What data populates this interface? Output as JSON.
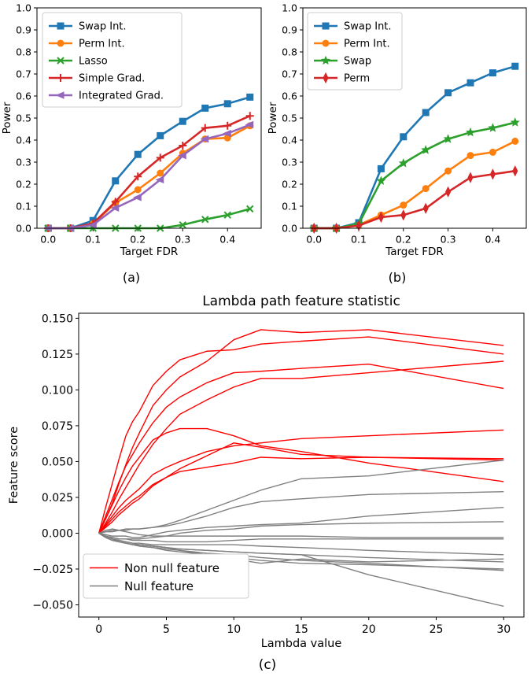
{
  "chart_data": [
    {
      "panel_label": "(a)",
      "type": "line",
      "xlabel": "Target FDR",
      "ylabel": "Power",
      "xlim": [
        -0.025,
        0.475
      ],
      "ylim": [
        0.0,
        1.0
      ],
      "xticks": [
        0.0,
        0.1,
        0.2,
        0.3,
        0.4
      ],
      "xtick_labels": [
        "0.0",
        "0.1",
        "0.2",
        "0.3",
        "0.4"
      ],
      "yticks": [
        0.0,
        0.1,
        0.2,
        0.3,
        0.4,
        0.5,
        0.6,
        0.7,
        0.8,
        0.9,
        1.0
      ],
      "ytick_labels": [
        "0.0",
        "0.1",
        "0.2",
        "0.3",
        "0.4",
        "0.5",
        "0.6",
        "0.7",
        "0.8",
        "0.9",
        "1.0"
      ],
      "legend_position": "top-left",
      "grid": false,
      "x": [
        0.0,
        0.05,
        0.1,
        0.15,
        0.2,
        0.25,
        0.3,
        0.35,
        0.4,
        0.45
      ],
      "series": [
        {
          "name": "Swap Int.",
          "color": "#1f77b4",
          "marker": "square",
          "values": [
            0.0,
            0.0,
            0.035,
            0.215,
            0.335,
            0.42,
            0.485,
            0.545,
            0.565,
            0.595
          ]
        },
        {
          "name": "Perm Int.",
          "color": "#ff7f0e",
          "marker": "circle",
          "values": [
            0.0,
            0.0,
            0.02,
            0.115,
            0.175,
            0.25,
            0.34,
            0.405,
            0.41,
            0.465
          ]
        },
        {
          "name": "Lasso",
          "color": "#2ca02c",
          "marker": "x",
          "values": [
            0.0,
            0.0,
            0.0,
            0.0,
            0.0,
            0.0,
            0.015,
            0.04,
            0.06,
            0.088
          ]
        },
        {
          "name": "Simple Grad.",
          "color": "#d62728",
          "marker": "plus",
          "values": [
            0.0,
            0.0,
            0.022,
            0.12,
            0.235,
            0.32,
            0.375,
            0.455,
            0.465,
            0.51
          ]
        },
        {
          "name": "Integrated Grad.",
          "color": "#9467bd",
          "marker": "triangle-left",
          "values": [
            0.0,
            0.0,
            0.015,
            0.092,
            0.14,
            0.22,
            0.33,
            0.405,
            0.43,
            0.47
          ]
        }
      ]
    },
    {
      "panel_label": "(b)",
      "type": "line",
      "xlabel": "Target FDR",
      "ylabel": "Power",
      "xlim": [
        -0.025,
        0.475
      ],
      "ylim": [
        0.0,
        1.0
      ],
      "xticks": [
        0.0,
        0.1,
        0.2,
        0.3,
        0.4
      ],
      "xtick_labels": [
        "0.0",
        "0.1",
        "0.2",
        "0.3",
        "0.4"
      ],
      "yticks": [
        0.0,
        0.1,
        0.2,
        0.3,
        0.4,
        0.5,
        0.6,
        0.7,
        0.8,
        0.9,
        1.0
      ],
      "ytick_labels": [
        "0.0",
        "0.1",
        "0.2",
        "0.3",
        "0.4",
        "0.5",
        "0.6",
        "0.7",
        "0.8",
        "0.9",
        "1.0"
      ],
      "legend_position": "top-left",
      "grid": false,
      "x": [
        0.0,
        0.05,
        0.1,
        0.15,
        0.2,
        0.25,
        0.3,
        0.35,
        0.4,
        0.45
      ],
      "series": [
        {
          "name": "Swap Int.",
          "color": "#1f77b4",
          "marker": "square",
          "values": [
            0.0,
            0.0,
            0.025,
            0.27,
            0.415,
            0.525,
            0.615,
            0.66,
            0.705,
            0.735
          ]
        },
        {
          "name": "Perm Int.",
          "color": "#ff7f0e",
          "marker": "circle",
          "values": [
            0.0,
            0.0,
            0.015,
            0.06,
            0.105,
            0.18,
            0.26,
            0.33,
            0.345,
            0.395
          ]
        },
        {
          "name": "Swap",
          "color": "#2ca02c",
          "marker": "star",
          "values": [
            0.0,
            0.0,
            0.02,
            0.215,
            0.295,
            0.355,
            0.405,
            0.435,
            0.455,
            0.48
          ]
        },
        {
          "name": "Perm",
          "color": "#d62728",
          "marker": "diamond",
          "values": [
            0.0,
            0.0,
            0.012,
            0.05,
            0.06,
            0.09,
            0.165,
            0.23,
            0.245,
            0.26
          ]
        }
      ]
    },
    {
      "panel_label": "(c)",
      "type": "line",
      "title": "Lambda path feature statistic",
      "xlabel": "Lambda value",
      "ylabel": "Feature score",
      "xlim": [
        -1.5,
        31.5
      ],
      "ylim": [
        -0.0585,
        0.1535
      ],
      "xticks": [
        0,
        5,
        10,
        15,
        20,
        25,
        30
      ],
      "xtick_labels": [
        "0",
        "5",
        "10",
        "15",
        "20",
        "25",
        "30"
      ],
      "yticks": [
        -0.05,
        -0.025,
        0.0,
        0.025,
        0.05,
        0.075,
        0.1,
        0.125,
        0.15
      ],
      "ytick_labels": [
        "−0.050",
        "−0.025",
        "0.000",
        "0.025",
        "0.050",
        "0.075",
        "0.100",
        "0.125",
        "0.150"
      ],
      "legend_position": "bottom-left",
      "legend": [
        {
          "label": "Non null feature",
          "color": "#ff0000"
        },
        {
          "label": "Null feature",
          "color": "#808080"
        }
      ],
      "grid": false,
      "x": [
        0,
        0.5,
        1,
        1.5,
        2,
        2.5,
        3,
        4,
        5,
        6,
        8,
        10,
        12,
        15,
        20,
        30
      ],
      "series": [
        {
          "group": "Non null feature",
          "color": "#ff0000",
          "values": [
            0,
            0.018,
            0.035,
            0.052,
            0.068,
            0.078,
            0.085,
            0.103,
            0.113,
            0.121,
            0.127,
            0.128,
            0.132,
            0.134,
            0.137,
            0.125
          ]
        },
        {
          "group": "Non null feature",
          "color": "#ff0000",
          "values": [
            0,
            0.012,
            0.024,
            0.036,
            0.047,
            0.055,
            0.063,
            0.077,
            0.088,
            0.095,
            0.105,
            0.112,
            0.113,
            0.115,
            0.118,
            0.101
          ]
        },
        {
          "group": "Non null feature",
          "color": "#ff0000",
          "values": [
            0,
            0.01,
            0.021,
            0.035,
            0.048,
            0.06,
            0.07,
            0.089,
            0.1,
            0.109,
            0.12,
            0.135,
            0.142,
            0.14,
            0.142,
            0.131
          ]
        },
        {
          "group": "Non null feature",
          "color": "#ff0000",
          "values": [
            0,
            0.007,
            0.015,
            0.024,
            0.032,
            0.04,
            0.048,
            0.062,
            0.073,
            0.083,
            0.093,
            0.102,
            0.108,
            0.108,
            0.112,
            0.12
          ]
        },
        {
          "group": "Non null feature",
          "color": "#ff0000",
          "values": [
            0,
            0.01,
            0.02,
            0.03,
            0.039,
            0.047,
            0.053,
            0.065,
            0.07,
            0.073,
            0.073,
            0.068,
            0.061,
            0.057,
            0.049,
            0.036
          ]
        },
        {
          "group": "Non null feature",
          "color": "#ff0000",
          "values": [
            0,
            0.006,
            0.012,
            0.018,
            0.023,
            0.027,
            0.031,
            0.041,
            0.046,
            0.05,
            0.057,
            0.061,
            0.063,
            0.066,
            0.068,
            0.072
          ]
        },
        {
          "group": "Non null feature",
          "color": "#ff0000",
          "values": [
            0,
            0.005,
            0.01,
            0.015,
            0.019,
            0.023,
            0.026,
            0.034,
            0.039,
            0.043,
            0.046,
            0.049,
            0.053,
            0.052,
            0.053,
            0.051
          ]
        },
        {
          "group": "Non null feature",
          "color": "#ff0000",
          "values": [
            0,
            0.004,
            0.008,
            0.013,
            0.017,
            0.021,
            0.024,
            0.033,
            0.039,
            0.045,
            0.054,
            0.063,
            0.06,
            0.055,
            0.053,
            0.052
          ]
        },
        {
          "group": "Null feature",
          "color": "#808080",
          "values": [
            0,
            0.001,
            0.001,
            0.002,
            0.002,
            0.003,
            0.003,
            0.004,
            0.006,
            0.009,
            0.016,
            0.023,
            0.03,
            0.038,
            0.04,
            0.051
          ]
        },
        {
          "group": "Null feature",
          "color": "#808080",
          "values": [
            0,
            0.001,
            0.002,
            0.002,
            0.003,
            0.003,
            0.003,
            0.004,
            0.005,
            0.007,
            0.012,
            0.018,
            0.022,
            0.024,
            0.027,
            0.029
          ]
        },
        {
          "group": "Null feature",
          "color": "#808080",
          "values": [
            0,
            -0.001,
            -0.002,
            -0.002,
            -0.002,
            -0.003,
            -0.003,
            -0.001,
            0.001,
            0.002,
            0.004,
            0.005,
            0.006,
            0.007,
            0.012,
            0.018
          ]
        },
        {
          "group": "Null feature",
          "color": "#808080",
          "values": [
            0,
            -0.002,
            -0.003,
            -0.004,
            -0.004,
            -0.004,
            -0.004,
            -0.003,
            -0.002,
            0.0,
            0.002,
            0.003,
            0.005,
            0.006,
            0.007,
            0.008
          ]
        },
        {
          "group": "Null feature",
          "color": "#808080",
          "values": [
            0,
            0.002,
            0.003,
            0.002,
            0.001,
            0.0,
            -0.001,
            -0.002,
            -0.002,
            -0.002,
            -0.002,
            -0.002,
            -0.002,
            -0.002,
            -0.003,
            -0.003
          ]
        },
        {
          "group": "Null feature",
          "color": "#808080",
          "values": [
            0,
            -0.002,
            -0.003,
            -0.004,
            -0.004,
            -0.005,
            -0.005,
            -0.005,
            -0.006,
            -0.006,
            -0.006,
            -0.005,
            -0.004,
            -0.004,
            -0.004,
            -0.004
          ]
        },
        {
          "group": "Null feature",
          "color": "#808080",
          "values": [
            0,
            -0.002,
            -0.004,
            -0.005,
            -0.006,
            -0.007,
            -0.007,
            -0.008,
            -0.008,
            -0.008,
            -0.008,
            -0.008,
            -0.009,
            -0.01,
            -0.012,
            -0.015
          ]
        },
        {
          "group": "Null feature",
          "color": "#808080",
          "values": [
            0,
            -0.003,
            -0.005,
            -0.006,
            -0.007,
            -0.008,
            -0.008,
            -0.009,
            -0.01,
            -0.011,
            -0.012,
            -0.013,
            -0.014,
            -0.015,
            -0.017,
            -0.02
          ]
        },
        {
          "group": "Null feature",
          "color": "#808080",
          "values": [
            0,
            -0.002,
            -0.004,
            -0.006,
            -0.007,
            -0.008,
            -0.009,
            -0.01,
            -0.011,
            -0.012,
            -0.014,
            -0.015,
            -0.017,
            -0.019,
            -0.021,
            -0.026
          ]
        },
        {
          "group": "Null feature",
          "color": "#808080",
          "values": [
            0,
            -0.003,
            -0.005,
            -0.006,
            -0.007,
            -0.008,
            -0.009,
            -0.01,
            -0.012,
            -0.013,
            -0.015,
            -0.017,
            -0.019,
            -0.021,
            -0.022,
            -0.025
          ]
        },
        {
          "group": "Null feature",
          "color": "#808080",
          "values": [
            0,
            -0.003,
            -0.005,
            -0.006,
            -0.007,
            -0.008,
            -0.008,
            -0.009,
            -0.01,
            -0.012,
            -0.015,
            -0.018,
            -0.021,
            -0.018,
            -0.02,
            -0.018
          ]
        },
        {
          "group": "Null feature",
          "color": "#808080",
          "values": [
            0,
            -0.002,
            -0.004,
            -0.005,
            -0.006,
            -0.007,
            -0.008,
            -0.009,
            -0.01,
            -0.011,
            -0.012,
            -0.013,
            -0.014,
            -0.015,
            -0.029,
            -0.051
          ]
        }
      ]
    }
  ]
}
